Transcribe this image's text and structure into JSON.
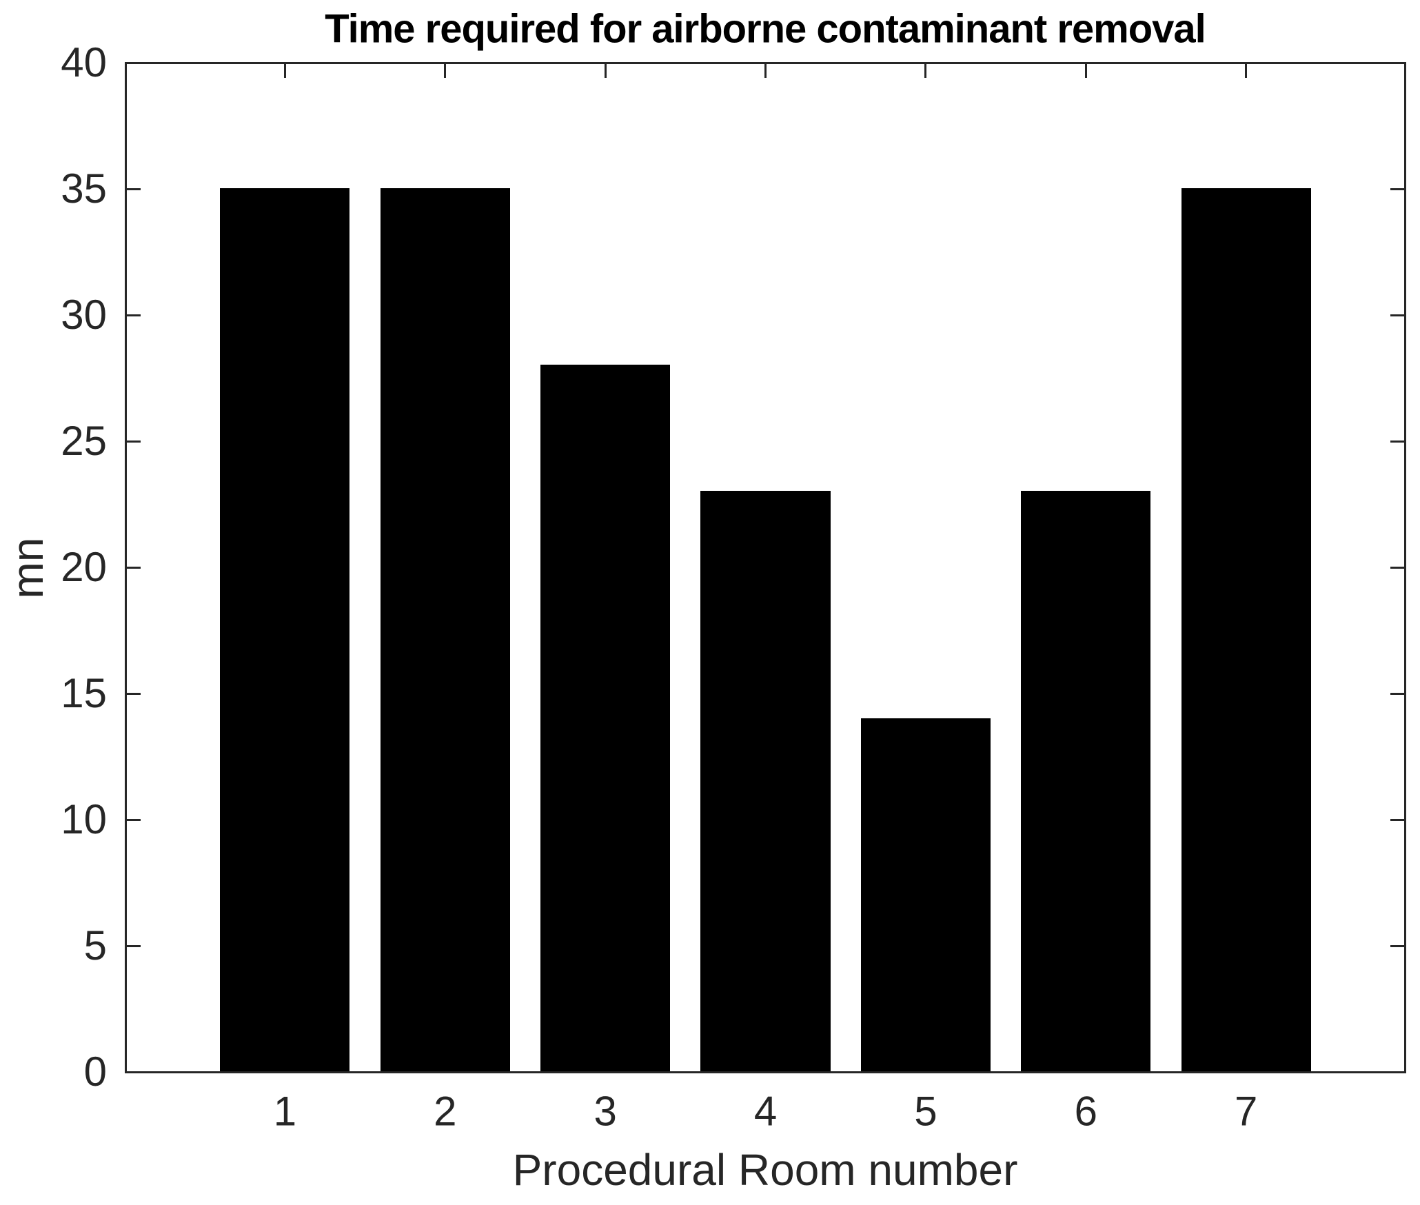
{
  "figure": {
    "background_color": "#ffffff",
    "axis_color": "#262626",
    "bar_color": "#000000",
    "title_color": "#000000"
  },
  "chart_data": {
    "type": "bar",
    "title": "Time required for airborne contaminant removal",
    "xlabel": "Procedural Room number",
    "ylabel": "mn",
    "categories": [
      "1",
      "2",
      "3",
      "4",
      "5",
      "6",
      "7"
    ],
    "values": [
      35,
      35,
      28,
      23,
      14,
      23,
      35
    ],
    "xlim": [
      0,
      8
    ],
    "ylim": [
      0,
      40
    ],
    "y_ticks": [
      0,
      5,
      10,
      15,
      20,
      25,
      30,
      35,
      40
    ],
    "bar_width_fraction": 0.81,
    "grid": false,
    "legend": "none",
    "box": true,
    "tick_direction": "in"
  }
}
